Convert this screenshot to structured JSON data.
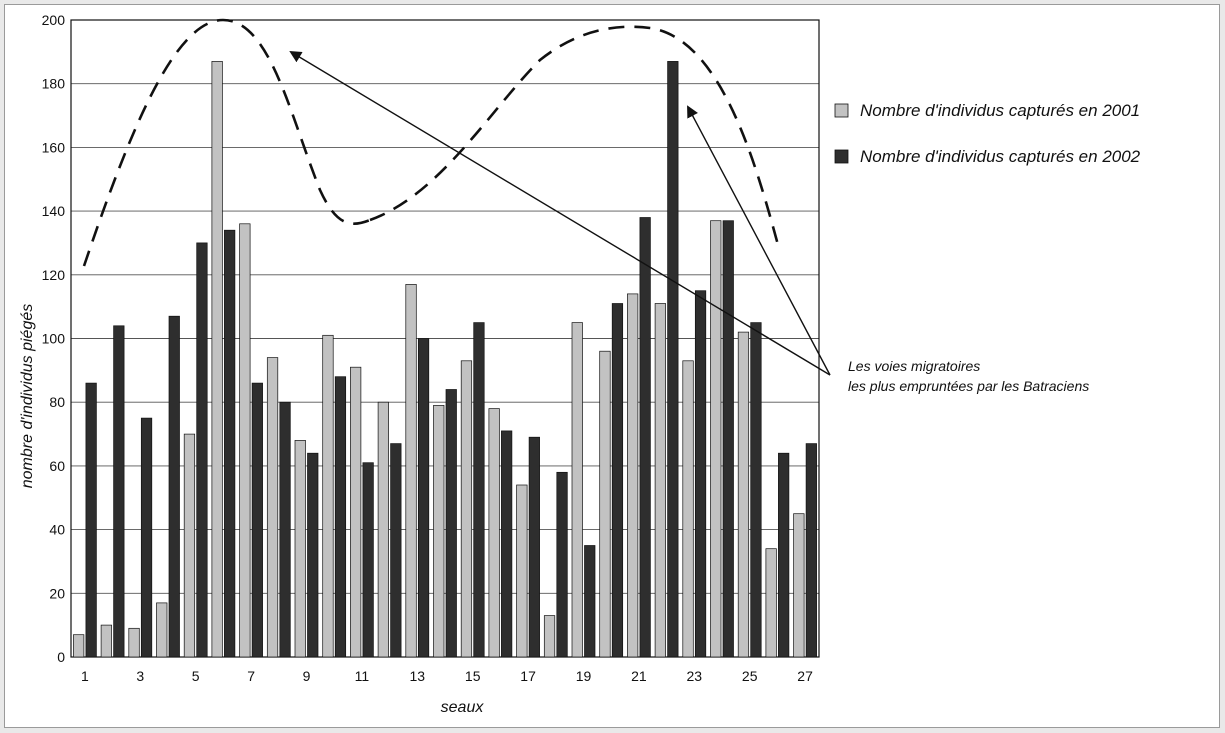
{
  "chart_data": {
    "type": "bar",
    "categories": [
      "1",
      "2",
      "3",
      "4",
      "5",
      "6",
      "7",
      "8",
      "9",
      "10",
      "11",
      "12",
      "13",
      "14",
      "15",
      "16",
      "17",
      "18",
      "19",
      "20",
      "21",
      "22",
      "23",
      "24",
      "25",
      "26",
      "27"
    ],
    "x_tick_labels": [
      "1",
      "3",
      "5",
      "7",
      "9",
      "11",
      "13",
      "15",
      "17",
      "19",
      "21",
      "23",
      "25",
      "27"
    ],
    "y_ticks": [
      0,
      20,
      40,
      60,
      80,
      100,
      120,
      140,
      160,
      180,
      200
    ],
    "ylim": [
      0,
      200
    ],
    "xlabel": "seaux",
    "ylabel": "nombre d'individus piégés",
    "grid": "horizontal",
    "legend_position": "right",
    "series": [
      {
        "name": "Nombre d'individus capturés en 2001",
        "color": "#c2c2c2",
        "values": [
          7,
          10,
          9,
          17,
          70,
          187,
          136,
          94,
          68,
          101,
          91,
          80,
          117,
          79,
          93,
          78,
          54,
          13,
          105,
          96,
          114,
          111,
          93,
          137,
          102,
          34,
          45
        ]
      },
      {
        "name": "Nombre d'individus capturés en 2002",
        "color": "#2e2e2e",
        "values": [
          86,
          104,
          75,
          107,
          130,
          134,
          86,
          80,
          64,
          88,
          61,
          67,
          100,
          84,
          105,
          71,
          69,
          58,
          35,
          111,
          138,
          187,
          115,
          137,
          105,
          64,
          67
        ]
      }
    ],
    "annotation": {
      "lines": [
        "Les voies migratoires",
        "les plus empruntées par les Batraciens"
      ]
    }
  }
}
